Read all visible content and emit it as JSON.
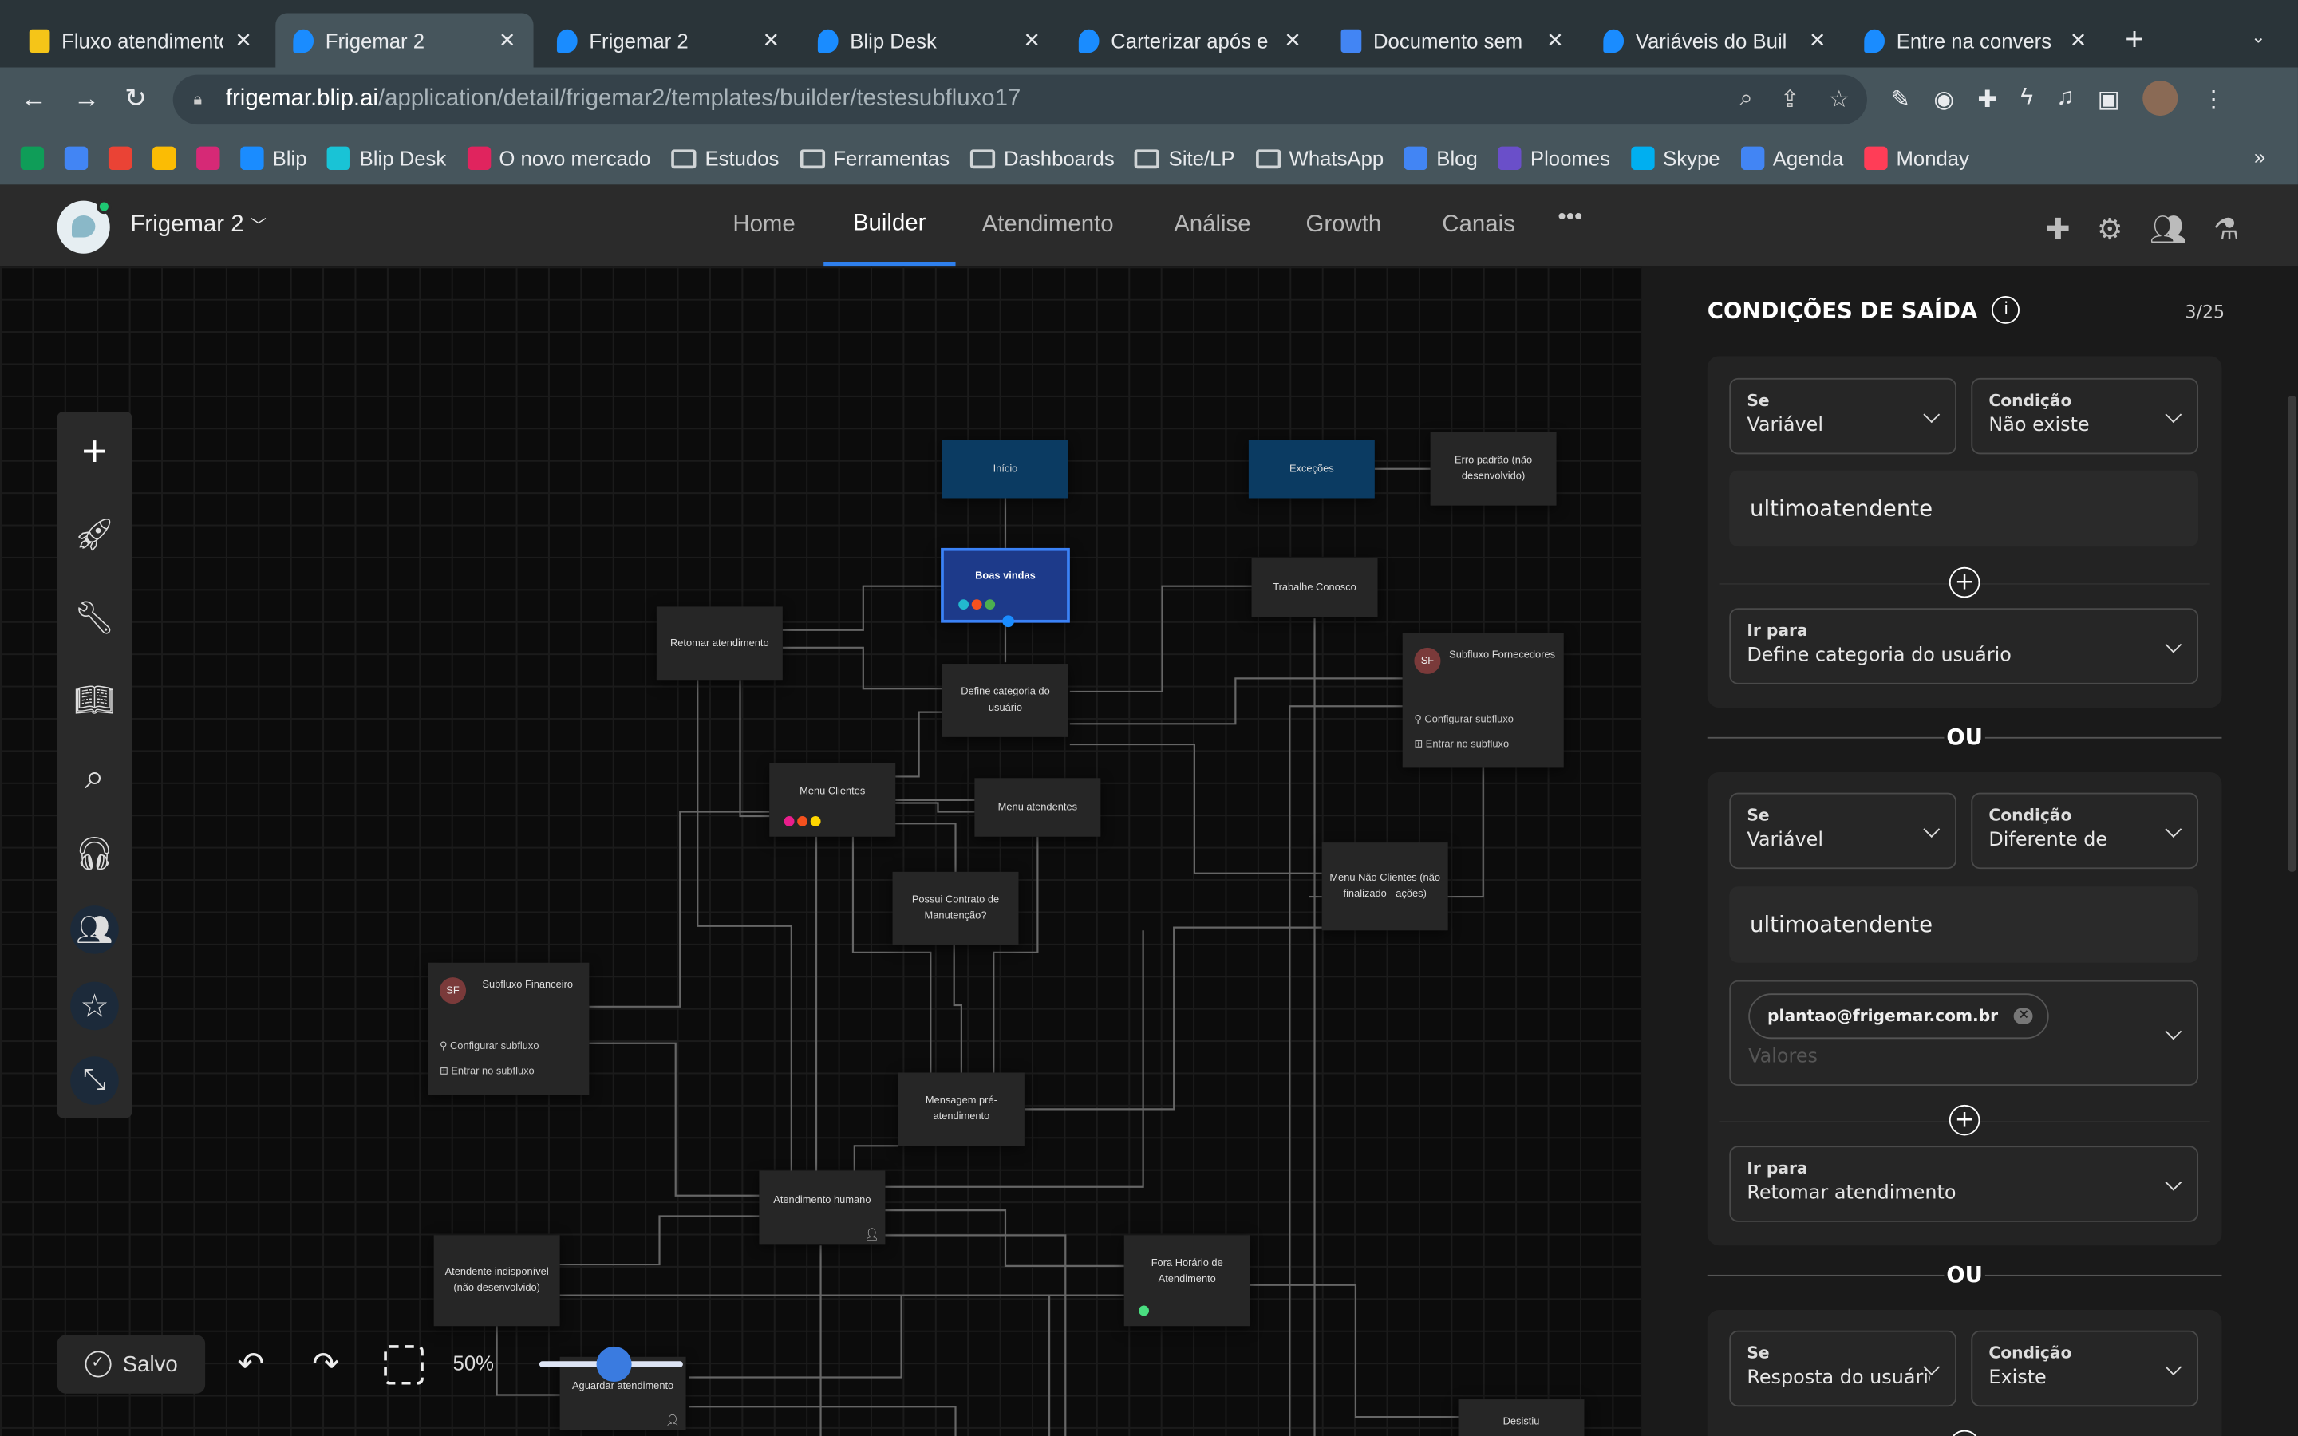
{
  "browser": {
    "tabs": [
      {
        "label": "Fluxo atendimento",
        "icon": "miro-icon",
        "color": "#f5c518"
      },
      {
        "label": "Frigemar 2",
        "icon": "blip-icon",
        "color": "#1a8cff",
        "active": true
      },
      {
        "label": "Frigemar 2",
        "icon": "blip-icon",
        "color": "#1a8cff"
      },
      {
        "label": "Blip Desk",
        "icon": "blip-icon",
        "color": "#1a8cff"
      },
      {
        "label": "Carterizar após e",
        "icon": "blip-icon",
        "color": "#1a8cff"
      },
      {
        "label": "Documento sem",
        "icon": "docs-icon",
        "color": "#4285f4"
      },
      {
        "label": "Variáveis do Buil",
        "icon": "blip-icon",
        "color": "#1a8cff"
      },
      {
        "label": "Entre na convers",
        "icon": "blip-icon",
        "color": "#1a8cff"
      }
    ],
    "url_host": "frigemar.blip.ai",
    "url_path": "/application/detail/frigemar2/templates/builder/testesubfluxo17",
    "bookmarks": [
      {
        "label": "",
        "icon": "sheets-icon",
        "color": "#0f9d58"
      },
      {
        "label": "",
        "icon": "docs-icon",
        "color": "#4285f4"
      },
      {
        "label": "",
        "icon": "gmail-icon",
        "color": "#ea4335"
      },
      {
        "label": "",
        "icon": "drive-icon",
        "color": "#fbbc04"
      },
      {
        "label": "",
        "icon": "instagram-icon",
        "color": "#d62976"
      },
      {
        "label": "Blip",
        "icon": "blip-icon",
        "color": "#1a8cff"
      },
      {
        "label": "Blip Desk",
        "icon": "blip-icon",
        "color": "#19c3d6"
      },
      {
        "label": "O novo mercado",
        "icon": "diamond-icon",
        "color": "#e0245e"
      },
      {
        "label": "Estudos",
        "icon": "folder-icon"
      },
      {
        "label": "Ferramentas",
        "icon": "folder-icon"
      },
      {
        "label": "Dashboards",
        "icon": "folder-icon"
      },
      {
        "label": "Site/LP",
        "icon": "folder-icon"
      },
      {
        "label": "WhatsApp",
        "icon": "folder-icon"
      },
      {
        "label": "Blog",
        "icon": "docs-icon",
        "color": "#4285f4"
      },
      {
        "label": "Ploomes",
        "icon": "ploomes-icon",
        "color": "#6a4fc9"
      },
      {
        "label": "Skype",
        "icon": "skype-icon",
        "color": "#00aff0"
      },
      {
        "label": "Agenda",
        "icon": "calendar-icon",
        "color": "#4285f4"
      },
      {
        "label": "Monday",
        "icon": "monday-icon",
        "color": "#ff3d57"
      }
    ]
  },
  "app": {
    "bot_name": "Frigemar 2",
    "nav": [
      "Home",
      "Builder",
      "Atendimento",
      "Análise",
      "Growth",
      "Canais"
    ],
    "active_nav": "Builder",
    "more": "•••",
    "accent": "#2f80ed"
  },
  "canvas": {
    "nodes": {
      "inicio": "Início",
      "excecoes": "Exceções",
      "erro": "Erro padrão (não desenvolvido)",
      "boas": "Boas vindas",
      "trabalhe": "Trabalhe Conosco",
      "retomar": "Retomar atendimento",
      "define": "Define categoria do usuário",
      "sub_forn": "Subfluxo Fornecedores",
      "menu_cli": "Menu Clientes",
      "menu_at": "Menu atendentes",
      "possui": "Possui Contrato de Manutenção?",
      "menu_nao": "Menu Não Clientes (não finalizado - ações)",
      "sub_fin": "Subfluxo Financeiro",
      "msg_pre": "Mensagem pré-atendimento",
      "at_humano": "Atendimento humano",
      "at_indisp": "Atendente indisponível (não desenvolvido)",
      "fora": "Fora Horário de Atendimento",
      "aguardar": "Aguardar atendimento",
      "desistiu": "Desistiu"
    },
    "subflow_badge": "SF",
    "subflow_config": "Configurar subfluxo",
    "subflow_enter": "Entrar no subfluxo",
    "save_status": "Salvo",
    "zoom": "50%",
    "zoom_level_percent": 50
  },
  "panel": {
    "title": "CONDIÇÕES DE SAÍDA",
    "count": "3/25",
    "or_label": "OU",
    "conditions": [
      {
        "if_label": "Se",
        "if_value": "Variável",
        "cond_label": "Condição",
        "cond_value": "Não existe",
        "variable": "ultimoatendente",
        "goto_label": "Ir para",
        "goto_value": "Define categoria do usuário"
      },
      {
        "if_label": "Se",
        "if_value": "Variável",
        "cond_label": "Condição",
        "cond_value": "Diferente de",
        "variable": "ultimoatendente",
        "chip": "plantao@frigemar.com.br",
        "values_placeholder": "Valores",
        "goto_label": "Ir para",
        "goto_value": "Retomar atendimento"
      },
      {
        "if_label": "Se",
        "if_value": "Resposta do usuário",
        "cond_label": "Condição",
        "cond_value": "Existe"
      }
    ]
  }
}
